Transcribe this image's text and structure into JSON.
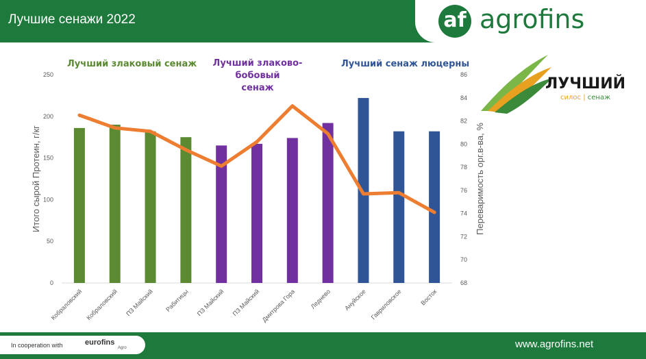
{
  "header": {
    "title": "Лучшие сенажи 2022"
  },
  "logo": {
    "mark": "af",
    "name": "agrofins"
  },
  "brand": {
    "word": "ЛУЧШИЙ",
    "sub_left": "силос",
    "sub_right": "сенаж"
  },
  "groups": [
    {
      "label": "Лучший злаковый сенаж",
      "color": "#5b8a32"
    },
    {
      "label": "Лучший злаково-бобовый",
      "label2": "сенаж",
      "color": "#7030a0"
    },
    {
      "label": "Лучший сенаж люцерны",
      "color": "#2f5597"
    }
  ],
  "footer": {
    "coop": "In cooperation with",
    "eurofins": "eurofins",
    "eurofins_sub": "Agro",
    "site": "www.agrofins.net"
  },
  "chart_data": {
    "type": "bar",
    "categories": [
      "Кобраловский",
      "Кобраловский",
      "ПЗ Майский",
      "Рабитицы",
      "ПЗ Майский",
      "ПЗ Майский",
      "Дмитрова Гора",
      "Леднево",
      "Ануйское",
      "Гавриловское",
      "Восток"
    ],
    "bar_colors": [
      "#5b8a32",
      "#5b8a32",
      "#5b8a32",
      "#5b8a32",
      "#7030a0",
      "#7030a0",
      "#7030a0",
      "#7030a0",
      "#2f5597",
      "#2f5597",
      "#2f5597"
    ],
    "series": [
      {
        "type": "bar",
        "axis": "left",
        "values": [
          186,
          190,
          182,
          175,
          165,
          167,
          174,
          192,
          222,
          182,
          182
        ]
      },
      {
        "type": "line",
        "axis": "right",
        "color": "#ed7d31",
        "values": [
          82.5,
          81.4,
          81.1,
          79.5,
          78.1,
          80.2,
          83.3,
          80.9,
          75.7,
          75.8,
          74.1
        ]
      }
    ],
    "ylabel": "Итого сырой Протеин, г/кг",
    "y2label": "Переваримость орг.в-ва, %",
    "ylim": [
      0,
      250
    ],
    "yticks": [
      0,
      50,
      100,
      150,
      200,
      250
    ],
    "y2lim": [
      68,
      86
    ],
    "y2ticks": [
      68,
      70,
      72,
      74,
      76,
      78,
      80,
      82,
      84,
      86
    ],
    "grid": false
  }
}
